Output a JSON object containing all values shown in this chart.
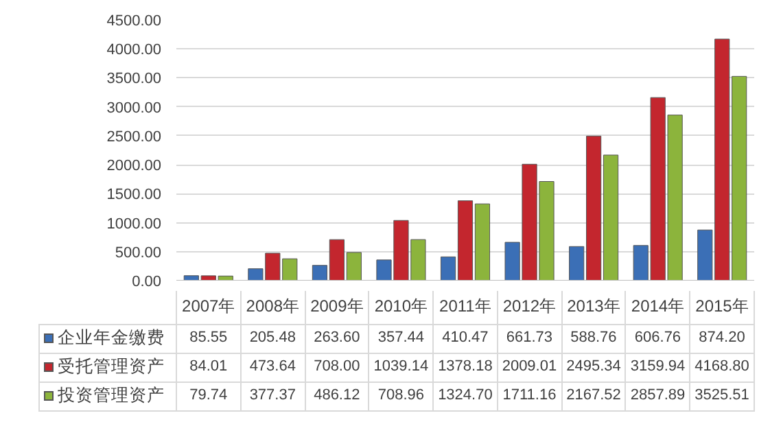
{
  "chart_data": {
    "type": "bar",
    "categories": [
      "2007年",
      "2008年",
      "2009年",
      "2010年",
      "2011年",
      "2012年",
      "2013年",
      "2014年",
      "2015年"
    ],
    "series": [
      {
        "name": "企业年金缴费",
        "color": "#3b6fb6",
        "values": [
          85.55,
          205.48,
          263.6,
          357.44,
          410.47,
          661.73,
          588.76,
          606.76,
          874.2
        ],
        "value_labels": [
          "85.55",
          "205.48",
          "263.60",
          "357.44",
          "410.47",
          "661.73",
          "588.76",
          "606.76",
          "874.20"
        ]
      },
      {
        "name": "受托管理资产",
        "color": "#c3262e",
        "values": [
          84.01,
          473.64,
          708.0,
          1039.14,
          1378.18,
          2009.01,
          2495.34,
          3159.94,
          4168.8
        ],
        "value_labels": [
          "84.01",
          "473.64",
          "708.00",
          "1039.14",
          "1378.18",
          "2009.01",
          "2495.34",
          "3159.94",
          "4168.80"
        ]
      },
      {
        "name": "投资管理资产",
        "color": "#8cb43c",
        "values": [
          79.74,
          377.37,
          486.12,
          708.96,
          1324.7,
          1711.16,
          2167.52,
          2857.89,
          3525.51
        ],
        "value_labels": [
          "79.74",
          "377.37",
          "486.12",
          "708.96",
          "1324.70",
          "1711.16",
          "2167.52",
          "2857.89",
          "3525.51"
        ]
      }
    ],
    "ylim": [
      0,
      4500
    ],
    "yticks": [
      {
        "value": 0,
        "label": "0.00"
      },
      {
        "value": 500,
        "label": "500.00"
      },
      {
        "value": 1000,
        "label": "1000.00"
      },
      {
        "value": 1500,
        "label": "1500.00"
      },
      {
        "value": 2000,
        "label": "2000.00"
      },
      {
        "value": 2500,
        "label": "2500.00"
      },
      {
        "value": 3000,
        "label": "3000.00"
      },
      {
        "value": 3500,
        "label": "3500.00"
      },
      {
        "value": 4000,
        "label": "4000.00"
      },
      {
        "value": 4500,
        "label": "4500.00"
      }
    ],
    "grid": "y",
    "legend": "bottom"
  }
}
